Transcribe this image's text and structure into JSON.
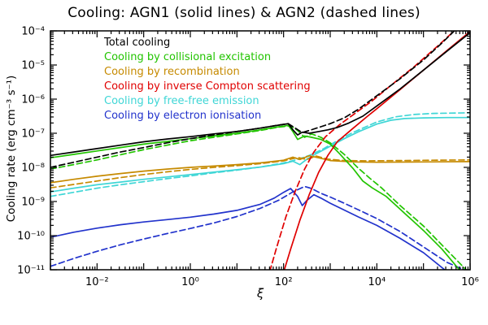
{
  "chart_data": {
    "type": "line",
    "title": "Cooling: AGN1 (solid lines) & AGN2 (dashed lines)",
    "xlabel": "ξ",
    "ylabel": "Cooling rate (erg cm⁻³ s⁻¹)",
    "x_scale": "log",
    "y_scale": "log",
    "grid": false,
    "xlim_log10": [
      -3,
      6
    ],
    "ylim_log10": [
      -11,
      -4
    ],
    "x_ticks": [
      {
        "log10": -2,
        "label": "10⁻²"
      },
      {
        "log10": 0,
        "label": "10⁰"
      },
      {
        "log10": 2,
        "label": "10²"
      },
      {
        "log10": 4,
        "label": "10⁴"
      },
      {
        "log10": 6,
        "label": "10⁶"
      }
    ],
    "y_ticks": [
      {
        "log10": -4,
        "label": "10⁻⁴"
      },
      {
        "log10": -5,
        "label": "10⁻⁵"
      },
      {
        "log10": -6,
        "label": "10⁻⁶"
      },
      {
        "log10": -7,
        "label": "10⁻⁷"
      },
      {
        "log10": -8,
        "label": "10⁻⁸"
      },
      {
        "log10": -9,
        "label": "10⁻⁹"
      },
      {
        "log10": -10,
        "label": "10⁻¹⁰"
      },
      {
        "log10": -11,
        "label": "10⁻¹¹"
      }
    ],
    "legend": {
      "position": "top-left",
      "items": [
        {
          "label": "Total cooling",
          "color": "#000000"
        },
        {
          "label": "Cooling by collisional excitation",
          "color": "#22c400"
        },
        {
          "label": "Cooling by recombination",
          "color": "#c68a00"
        },
        {
          "label": "Cooling by inverse Compton scattering",
          "color": "#e00000"
        },
        {
          "label": "Cooling by free-free emission",
          "color": "#3fd6d6"
        },
        {
          "label": "Cooling by electron ionisation",
          "color": "#2233cc"
        }
      ]
    },
    "series": [
      {
        "name": "Free-free emission AGN1",
        "color": "#3fd6d6",
        "style": "solid",
        "points_log10": [
          [
            -3,
            -8.72
          ],
          [
            -2.5,
            -8.61
          ],
          [
            -2,
            -8.51
          ],
          [
            -1.5,
            -8.43
          ],
          [
            -1,
            -8.35
          ],
          [
            -0.5,
            -8.28
          ],
          [
            0,
            -8.21
          ],
          [
            0.5,
            -8.14
          ],
          [
            1,
            -8.07
          ],
          [
            1.5,
            -7.99
          ],
          [
            2.0,
            -7.89
          ],
          [
            2.2,
            -7.82
          ],
          [
            2.35,
            -7.92
          ],
          [
            2.5,
            -7.76
          ],
          [
            2.7,
            -7.6
          ],
          [
            3.0,
            -7.38
          ],
          [
            3.3,
            -7.16
          ],
          [
            3.6,
            -6.96
          ],
          [
            4.0,
            -6.73
          ],
          [
            4.3,
            -6.62
          ],
          [
            4.6,
            -6.57
          ],
          [
            5.0,
            -6.55
          ],
          [
            5.5,
            -6.54
          ],
          [
            6.0,
            -6.54
          ]
        ]
      },
      {
        "name": "Free-free emission AGN2",
        "color": "#3fd6d6",
        "style": "dashed",
        "points_log10": [
          [
            -3,
            -8.85
          ],
          [
            -2.5,
            -8.73
          ],
          [
            -2,
            -8.61
          ],
          [
            -1.5,
            -8.51
          ],
          [
            -1,
            -8.42
          ],
          [
            -0.5,
            -8.33
          ],
          [
            0,
            -8.25
          ],
          [
            0.5,
            -8.16
          ],
          [
            1,
            -8.08
          ],
          [
            1.5,
            -7.99
          ],
          [
            2.0,
            -7.87
          ],
          [
            2.3,
            -7.77
          ],
          [
            2.55,
            -7.65
          ],
          [
            2.85,
            -7.46
          ],
          [
            3.15,
            -7.22
          ],
          [
            3.5,
            -6.97
          ],
          [
            4.0,
            -6.67
          ],
          [
            4.4,
            -6.52
          ],
          [
            4.8,
            -6.45
          ],
          [
            5.2,
            -6.42
          ],
          [
            5.6,
            -6.41
          ],
          [
            6.0,
            -6.4
          ]
        ]
      },
      {
        "name": "Recombination AGN1",
        "color": "#c68a00",
        "style": "solid",
        "points_log10": [
          [
            -3,
            -8.45
          ],
          [
            -2.5,
            -8.35
          ],
          [
            -2,
            -8.26
          ],
          [
            -1.5,
            -8.18
          ],
          [
            -1,
            -8.11
          ],
          [
            -0.5,
            -8.05
          ],
          [
            0,
            -8.0
          ],
          [
            0.5,
            -7.96
          ],
          [
            1,
            -7.92
          ],
          [
            1.5,
            -7.87
          ],
          [
            2.0,
            -7.79
          ],
          [
            2.2,
            -7.7
          ],
          [
            2.35,
            -7.77
          ],
          [
            2.55,
            -7.66
          ],
          [
            2.75,
            -7.72
          ],
          [
            3.0,
            -7.8
          ],
          [
            3.5,
            -7.84
          ],
          [
            4.0,
            -7.85
          ],
          [
            5.0,
            -7.84
          ],
          [
            6.0,
            -7.83
          ]
        ]
      },
      {
        "name": "Recombination AGN2",
        "color": "#c68a00",
        "style": "dashed",
        "points_log10": [
          [
            -3,
            -8.6
          ],
          [
            -2.5,
            -8.5
          ],
          [
            -2,
            -8.4
          ],
          [
            -1.5,
            -8.3
          ],
          [
            -1,
            -8.21
          ],
          [
            -0.5,
            -8.13
          ],
          [
            0,
            -8.06
          ],
          [
            0.5,
            -8.0
          ],
          [
            1,
            -7.95
          ],
          [
            1.5,
            -7.89
          ],
          [
            2.0,
            -7.81
          ],
          [
            2.3,
            -7.71
          ],
          [
            2.5,
            -7.77
          ],
          [
            2.7,
            -7.67
          ],
          [
            2.95,
            -7.76
          ],
          [
            3.3,
            -7.8
          ],
          [
            3.8,
            -7.81
          ],
          [
            4.5,
            -7.8
          ],
          [
            5.2,
            -7.79
          ],
          [
            6.0,
            -7.78
          ]
        ]
      },
      {
        "name": "Electron ionisation AGN1",
        "color": "#2233cc",
        "style": "solid",
        "points_log10": [
          [
            -3,
            -10.05
          ],
          [
            -2.5,
            -9.9
          ],
          [
            -2,
            -9.78
          ],
          [
            -1.5,
            -9.68
          ],
          [
            -1,
            -9.6
          ],
          [
            -0.5,
            -9.53
          ],
          [
            0,
            -9.46
          ],
          [
            0.5,
            -9.37
          ],
          [
            1,
            -9.26
          ],
          [
            1.5,
            -9.08
          ],
          [
            1.8,
            -8.9
          ],
          [
            2.0,
            -8.73
          ],
          [
            2.15,
            -8.62
          ],
          [
            2.3,
            -8.85
          ],
          [
            2.4,
            -9.12
          ],
          [
            2.5,
            -8.97
          ],
          [
            2.65,
            -8.8
          ],
          [
            2.8,
            -8.9
          ],
          [
            3.0,
            -9.05
          ],
          [
            3.3,
            -9.25
          ],
          [
            3.6,
            -9.45
          ],
          [
            4.0,
            -9.7
          ],
          [
            4.5,
            -10.08
          ],
          [
            5.0,
            -10.5
          ],
          [
            5.5,
            -11.05
          ]
        ]
      },
      {
        "name": "Electron ionisation AGN2",
        "color": "#2233cc",
        "style": "dashed",
        "points_log10": [
          [
            -3,
            -10.9
          ],
          [
            -2.5,
            -10.67
          ],
          [
            -2,
            -10.46
          ],
          [
            -1.5,
            -10.27
          ],
          [
            -1,
            -10.1
          ],
          [
            -0.5,
            -9.94
          ],
          [
            0,
            -9.79
          ],
          [
            0.5,
            -9.63
          ],
          [
            1,
            -9.44
          ],
          [
            1.5,
            -9.2
          ],
          [
            1.9,
            -8.96
          ],
          [
            2.2,
            -8.72
          ],
          [
            2.45,
            -8.56
          ],
          [
            2.6,
            -8.62
          ],
          [
            2.8,
            -8.76
          ],
          [
            3.0,
            -8.87
          ],
          [
            3.3,
            -9.05
          ],
          [
            3.6,
            -9.24
          ],
          [
            4.0,
            -9.5
          ],
          [
            4.5,
            -9.88
          ],
          [
            5.0,
            -10.33
          ],
          [
            5.5,
            -10.78
          ],
          [
            5.95,
            -11.05
          ]
        ]
      },
      {
        "name": "Collisional excitation AGN1",
        "color": "#22c400",
        "style": "solid",
        "points_log10": [
          [
            -3,
            -7.72
          ],
          [
            -2.5,
            -7.62
          ],
          [
            -2,
            -7.52
          ],
          [
            -1.5,
            -7.42
          ],
          [
            -1,
            -7.32
          ],
          [
            -0.5,
            -7.24
          ],
          [
            0,
            -7.16
          ],
          [
            0.5,
            -7.08
          ],
          [
            1,
            -7.0
          ],
          [
            1.5,
            -6.9
          ],
          [
            1.8,
            -6.83
          ],
          [
            2.0,
            -6.79
          ],
          [
            2.1,
            -6.77
          ],
          [
            2.2,
            -6.95
          ],
          [
            2.3,
            -7.18
          ],
          [
            2.45,
            -7.08
          ],
          [
            2.6,
            -7.12
          ],
          [
            2.8,
            -7.18
          ],
          [
            3.0,
            -7.32
          ],
          [
            3.2,
            -7.6
          ],
          [
            3.5,
            -8.05
          ],
          [
            3.7,
            -8.4
          ],
          [
            3.9,
            -8.6
          ],
          [
            4.2,
            -8.85
          ],
          [
            4.6,
            -9.35
          ],
          [
            5.0,
            -9.85
          ],
          [
            5.4,
            -10.4
          ],
          [
            5.8,
            -11.05
          ]
        ]
      },
      {
        "name": "Collisional excitation AGN2",
        "color": "#22c400",
        "style": "dashed",
        "points_log10": [
          [
            -3,
            -8.05
          ],
          [
            -2.5,
            -7.92
          ],
          [
            -2,
            -7.78
          ],
          [
            -1.5,
            -7.63
          ],
          [
            -1,
            -7.48
          ],
          [
            -0.5,
            -7.35
          ],
          [
            0,
            -7.22
          ],
          [
            0.5,
            -7.12
          ],
          [
            1,
            -7.02
          ],
          [
            1.5,
            -6.92
          ],
          [
            1.9,
            -6.82
          ],
          [
            2.15,
            -6.78
          ],
          [
            2.3,
            -6.92
          ],
          [
            2.45,
            -7.12
          ],
          [
            2.6,
            -7.02
          ],
          [
            2.8,
            -7.12
          ],
          [
            3.0,
            -7.28
          ],
          [
            3.3,
            -7.62
          ],
          [
            3.6,
            -8.02
          ],
          [
            3.85,
            -8.32
          ],
          [
            4.1,
            -8.6
          ],
          [
            4.5,
            -9.12
          ],
          [
            5.0,
            -9.72
          ],
          [
            5.5,
            -10.42
          ],
          [
            5.95,
            -11.05
          ]
        ]
      },
      {
        "name": "Inverse Compton AGN1",
        "color": "#e00000",
        "style": "solid",
        "points_log10": [
          [
            1.95,
            -11.3
          ],
          [
            2.15,
            -10.4
          ],
          [
            2.35,
            -9.55
          ],
          [
            2.55,
            -8.8
          ],
          [
            2.75,
            -8.15
          ],
          [
            2.95,
            -7.65
          ],
          [
            3.15,
            -7.25
          ],
          [
            3.45,
            -6.9
          ],
          [
            3.8,
            -6.5
          ],
          [
            4.0,
            -6.28
          ],
          [
            4.5,
            -5.72
          ],
          [
            5.0,
            -5.15
          ],
          [
            5.5,
            -4.58
          ],
          [
            6.0,
            -4.02
          ]
        ]
      },
      {
        "name": "Inverse Compton AGN2",
        "color": "#e00000",
        "style": "dashed",
        "points_log10": [
          [
            1.65,
            -11.3
          ],
          [
            1.85,
            -10.35
          ],
          [
            2.05,
            -9.45
          ],
          [
            2.25,
            -8.7
          ],
          [
            2.45,
            -8.05
          ],
          [
            2.65,
            -7.55
          ],
          [
            2.9,
            -7.1
          ],
          [
            3.2,
            -6.75
          ],
          [
            3.5,
            -6.45
          ],
          [
            3.9,
            -6.05
          ],
          [
            4.3,
            -5.6
          ],
          [
            4.8,
            -5.05
          ],
          [
            5.3,
            -4.45
          ],
          [
            5.7,
            -3.95
          ]
        ]
      },
      {
        "name": "Total cooling AGN1",
        "color": "#000000",
        "style": "solid",
        "points_log10": [
          [
            -3,
            -7.65
          ],
          [
            -2.5,
            -7.55
          ],
          [
            -2,
            -7.45
          ],
          [
            -1.5,
            -7.35
          ],
          [
            -1,
            -7.25
          ],
          [
            -0.5,
            -7.17
          ],
          [
            0,
            -7.1
          ],
          [
            0.5,
            -7.02
          ],
          [
            1,
            -6.95
          ],
          [
            1.5,
            -6.85
          ],
          [
            1.8,
            -6.78
          ],
          [
            2.0,
            -6.74
          ],
          [
            2.1,
            -6.72
          ],
          [
            2.2,
            -6.9
          ],
          [
            2.3,
            -7.05
          ],
          [
            2.4,
            -6.97
          ],
          [
            2.55,
            -7.0
          ],
          [
            2.75,
            -6.95
          ],
          [
            2.95,
            -6.9
          ],
          [
            3.15,
            -6.83
          ],
          [
            3.4,
            -6.7
          ],
          [
            3.7,
            -6.5
          ],
          [
            4.0,
            -6.2
          ],
          [
            4.5,
            -5.7
          ],
          [
            5.0,
            -5.15
          ],
          [
            5.5,
            -4.6
          ],
          [
            6.0,
            -4.05
          ]
        ]
      },
      {
        "name": "Total cooling AGN2",
        "color": "#000000",
        "style": "dashed",
        "points_log10": [
          [
            -3,
            -8.0
          ],
          [
            -2.5,
            -7.85
          ],
          [
            -2,
            -7.7
          ],
          [
            -1.5,
            -7.55
          ],
          [
            -1,
            -7.42
          ],
          [
            -0.5,
            -7.28
          ],
          [
            0,
            -7.16
          ],
          [
            0.5,
            -7.05
          ],
          [
            1,
            -6.95
          ],
          [
            1.5,
            -6.85
          ],
          [
            1.9,
            -6.76
          ],
          [
            2.1,
            -6.72
          ],
          [
            2.25,
            -6.85
          ],
          [
            2.4,
            -6.98
          ],
          [
            2.55,
            -6.92
          ],
          [
            2.75,
            -6.83
          ],
          [
            3.0,
            -6.72
          ],
          [
            3.3,
            -6.55
          ],
          [
            3.6,
            -6.3
          ],
          [
            4.0,
            -5.9
          ],
          [
            4.5,
            -5.4
          ],
          [
            5.0,
            -4.85
          ],
          [
            5.4,
            -4.35
          ],
          [
            5.7,
            -3.95
          ]
        ]
      }
    ]
  }
}
